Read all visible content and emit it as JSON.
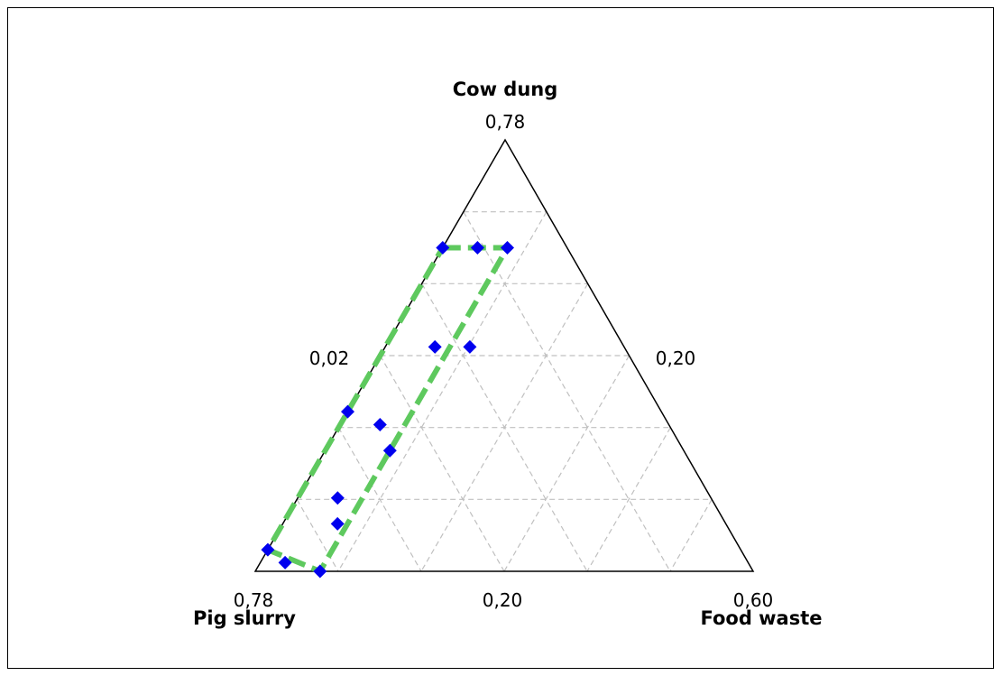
{
  "chart_data": {
    "type": "scatter",
    "plot_kind": "ternary mixture design",
    "vertices": {
      "top": {
        "component": "Cow dung",
        "value_label": "0,78"
      },
      "left": {
        "component": "Pig slurry",
        "value_label": "0,78"
      },
      "right": {
        "component": "Food waste",
        "value_label": "0,60"
      }
    },
    "edge_labels": {
      "left": "0,02",
      "right": "0,20",
      "bottom": "0,20"
    },
    "grid": true,
    "grid_divisions": 6,
    "points": [
      {
        "top": 0.75,
        "left": 0.25,
        "right": 0.0
      },
      {
        "top": 0.75,
        "left": 0.18,
        "right": 0.07
      },
      {
        "top": 0.75,
        "left": 0.12,
        "right": 0.13
      },
      {
        "top": 0.52,
        "left": 0.38,
        "right": 0.1
      },
      {
        "top": 0.52,
        "left": 0.31,
        "right": 0.17
      },
      {
        "top": 0.37,
        "left": 0.63,
        "right": 0.0
      },
      {
        "top": 0.34,
        "left": 0.58,
        "right": 0.08
      },
      {
        "top": 0.28,
        "left": 0.59,
        "right": 0.13
      },
      {
        "top": 0.17,
        "left": 0.75,
        "right": 0.08
      },
      {
        "top": 0.11,
        "left": 0.78,
        "right": 0.11
      },
      {
        "top": 0.05,
        "left": 0.95,
        "right": 0.0
      },
      {
        "top": 0.02,
        "left": 0.93,
        "right": 0.05
      },
      {
        "top": 0.0,
        "left": 0.87,
        "right": 0.13
      }
    ],
    "region": [
      {
        "top": 0.75,
        "left": 0.25,
        "right": 0.0
      },
      {
        "top": 0.75,
        "left": 0.12,
        "right": 0.13
      },
      {
        "top": 0.0,
        "left": 0.87,
        "right": 0.13
      },
      {
        "top": 0.05,
        "left": 0.95,
        "right": 0.0
      }
    ],
    "colors": {
      "points": "#0000ee",
      "region": "#5ec95e",
      "grid": "#c0c0c0",
      "axis": "#000000"
    }
  }
}
